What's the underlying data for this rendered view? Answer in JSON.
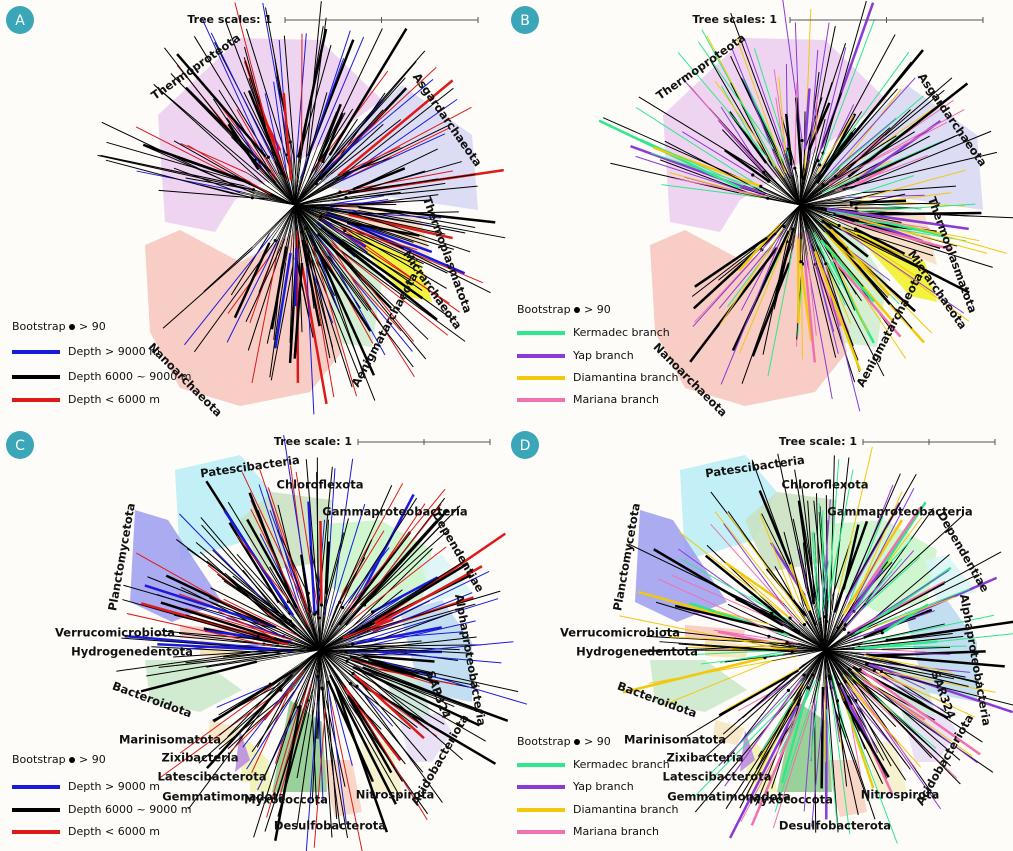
{
  "panels": [
    {
      "label": "A",
      "scale_label": "Tree scales: 1",
      "clades": [
        "Thermoproteota",
        "Asgardarchaeota",
        "Thermoplasmatota",
        "Micrarchaeota",
        "Aenigmatarchaeota",
        "Nanoarchaeota"
      ],
      "legend": {
        "bootstrap": "Bootstrap",
        "bootstrap_threshold": "> 90",
        "items": [
          {
            "label": "Depth > 9000 m",
            "color": "#1a1adc"
          },
          {
            "label": "Depth 6000 ~ 9000 m",
            "color": "#000000"
          },
          {
            "label": "Depth < 6000 m",
            "color": "#dc1a1a"
          }
        ]
      }
    },
    {
      "label": "B",
      "scale_label": "Tree scales: 1",
      "clades": [
        "Thermoproteota",
        "Asgardarchaeota",
        "Thermoplasmatota",
        "Micrarchaeota",
        "Aenigmatarchaeota",
        "Nanoarchaeota"
      ],
      "legend": {
        "bootstrap": "Bootstrap",
        "bootstrap_threshold": "> 90",
        "items": [
          {
            "label": "Kermadec branch",
            "color": "#2ee88c"
          },
          {
            "label": "Yap branch",
            "color": "#8a3ad6"
          },
          {
            "label": "Diamantina branch",
            "color": "#f2c80a"
          },
          {
            "label": "Mariana branch",
            "color": "#f070b0"
          }
        ]
      }
    },
    {
      "label": "C",
      "scale_label": "Tree scale: 1",
      "clades": [
        "Patescibacteria",
        "Chloroflexota",
        "Gammaproteobacteria",
        "Dependentiae",
        "Alphaproteobacteria",
        "SAR324",
        "Acidobacteriota",
        "Nitrospirota",
        "Desulfobacterota",
        "Myxococcota",
        "Gemmatimonadota",
        "Latescibacterota",
        "Zixibacteria",
        "Marinisomatota",
        "Bacteroidota",
        "Hydrogenedentota",
        "Verrucomicrobiota",
        "Planctomycetota"
      ],
      "legend": {
        "bootstrap": "Bootstrap",
        "bootstrap_threshold": "> 90",
        "items": [
          {
            "label": "Depth > 9000 m",
            "color": "#1a1adc"
          },
          {
            "label": "Depth 6000 ~ 9000 m",
            "color": "#000000"
          },
          {
            "label": "Depth < 6000 m",
            "color": "#dc1a1a"
          }
        ]
      }
    },
    {
      "label": "D",
      "scale_label": "Tree scale: 1",
      "clades": [
        "Patescibacteria",
        "Chloroflexota",
        "Gammaproteobacteria",
        "Dependentiae",
        "Alphaproteobacteria",
        "SAR324",
        "Acidobacteriota",
        "Nitrospirota",
        "Desulfobacterota",
        "Myxococcota",
        "Gemmatimonadota",
        "Latescibacterota",
        "Zixibacteria",
        "Marinisomatota",
        "Bacteroidota",
        "Hydrogenedentota",
        "Verrucomicrobiota",
        "Planctomycetota"
      ],
      "legend": {
        "bootstrap": "Bootstrap",
        "bootstrap_threshold": "> 90",
        "items": [
          {
            "label": "Kermadec branch",
            "color": "#2ee88c"
          },
          {
            "label": "Yap branch",
            "color": "#8a3ad6"
          },
          {
            "label": "Diamantina branch",
            "color": "#f2c80a"
          },
          {
            "label": "Mariana branch",
            "color": "#f070b0"
          }
        ]
      }
    }
  ]
}
